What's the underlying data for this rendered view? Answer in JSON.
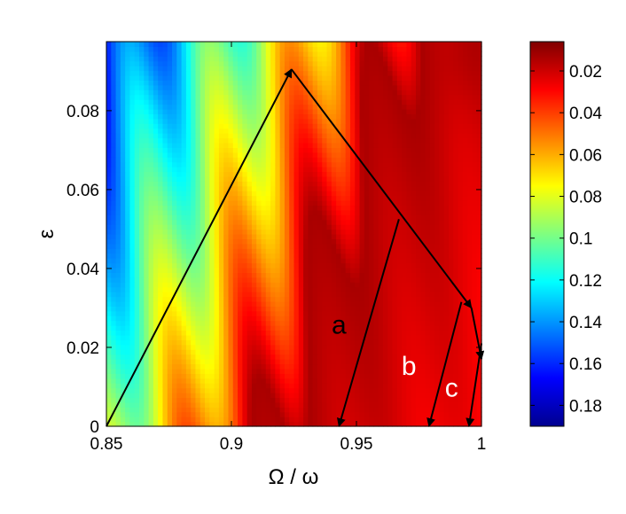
{
  "chart_data": {
    "type": "heatmap",
    "title": "",
    "xlabel": "Ω / ω",
    "ylabel": "ε",
    "xlim": [
      0.85,
      1.0
    ],
    "ylim": [
      0,
      0.0975
    ],
    "x_ticks": [
      {
        "value": 0.85,
        "label": "0.85"
      },
      {
        "value": 0.9,
        "label": "0.9"
      },
      {
        "value": 0.95,
        "label": "0.95"
      },
      {
        "value": 1.0,
        "label": "1"
      }
    ],
    "y_ticks": [
      {
        "value": 0,
        "label": "0"
      },
      {
        "value": 0.02,
        "label": "0.02"
      },
      {
        "value": 0.04,
        "label": "0.04"
      },
      {
        "value": 0.06,
        "label": "0.06"
      },
      {
        "value": 0.08,
        "label": "0.08"
      }
    ],
    "colorbar": {
      "colormap": "jet",
      "reversed": true,
      "range": [
        0.006,
        0.19
      ],
      "ticks": [
        {
          "value": 0.02,
          "label": "0.02"
        },
        {
          "value": 0.04,
          "label": "0.04"
        },
        {
          "value": 0.06,
          "label": "0.06"
        },
        {
          "value": 0.08,
          "label": "0.08"
        },
        {
          "value": 0.1,
          "label": "0.1"
        },
        {
          "value": 0.12,
          "label": "0.12"
        },
        {
          "value": 0.14,
          "label": "0.14"
        },
        {
          "value": 0.16,
          "label": "0.16"
        },
        {
          "value": 0.18,
          "label": "0.18"
        }
      ]
    },
    "arrows": [
      {
        "from": [
          0.85,
          0.0
        ],
        "to": [
          0.924,
          0.0905
        ]
      },
      {
        "from": [
          0.924,
          0.0905
        ],
        "to": [
          0.996,
          0.03
        ]
      },
      {
        "from": [
          0.996,
          0.03
        ],
        "to": [
          1.0,
          0.017
        ]
      },
      {
        "from": [
          0.967,
          0.0525
        ],
        "to": [
          0.943,
          0.0
        ]
      },
      {
        "from": [
          0.992,
          0.0315
        ],
        "to": [
          0.979,
          0.0
        ]
      },
      {
        "from": [
          1.0,
          0.021
        ],
        "to": [
          0.995,
          0.0
        ]
      }
    ],
    "annotations": [
      {
        "text": "a",
        "x": 0.943,
        "y": 0.0235,
        "color": "#000000"
      },
      {
        "text": "b",
        "x": 0.971,
        "y": 0.013,
        "color": "#ffffff"
      },
      {
        "text": "c",
        "x": 0.988,
        "y": 0.0075,
        "color": "#ffffff"
      }
    ]
  }
}
